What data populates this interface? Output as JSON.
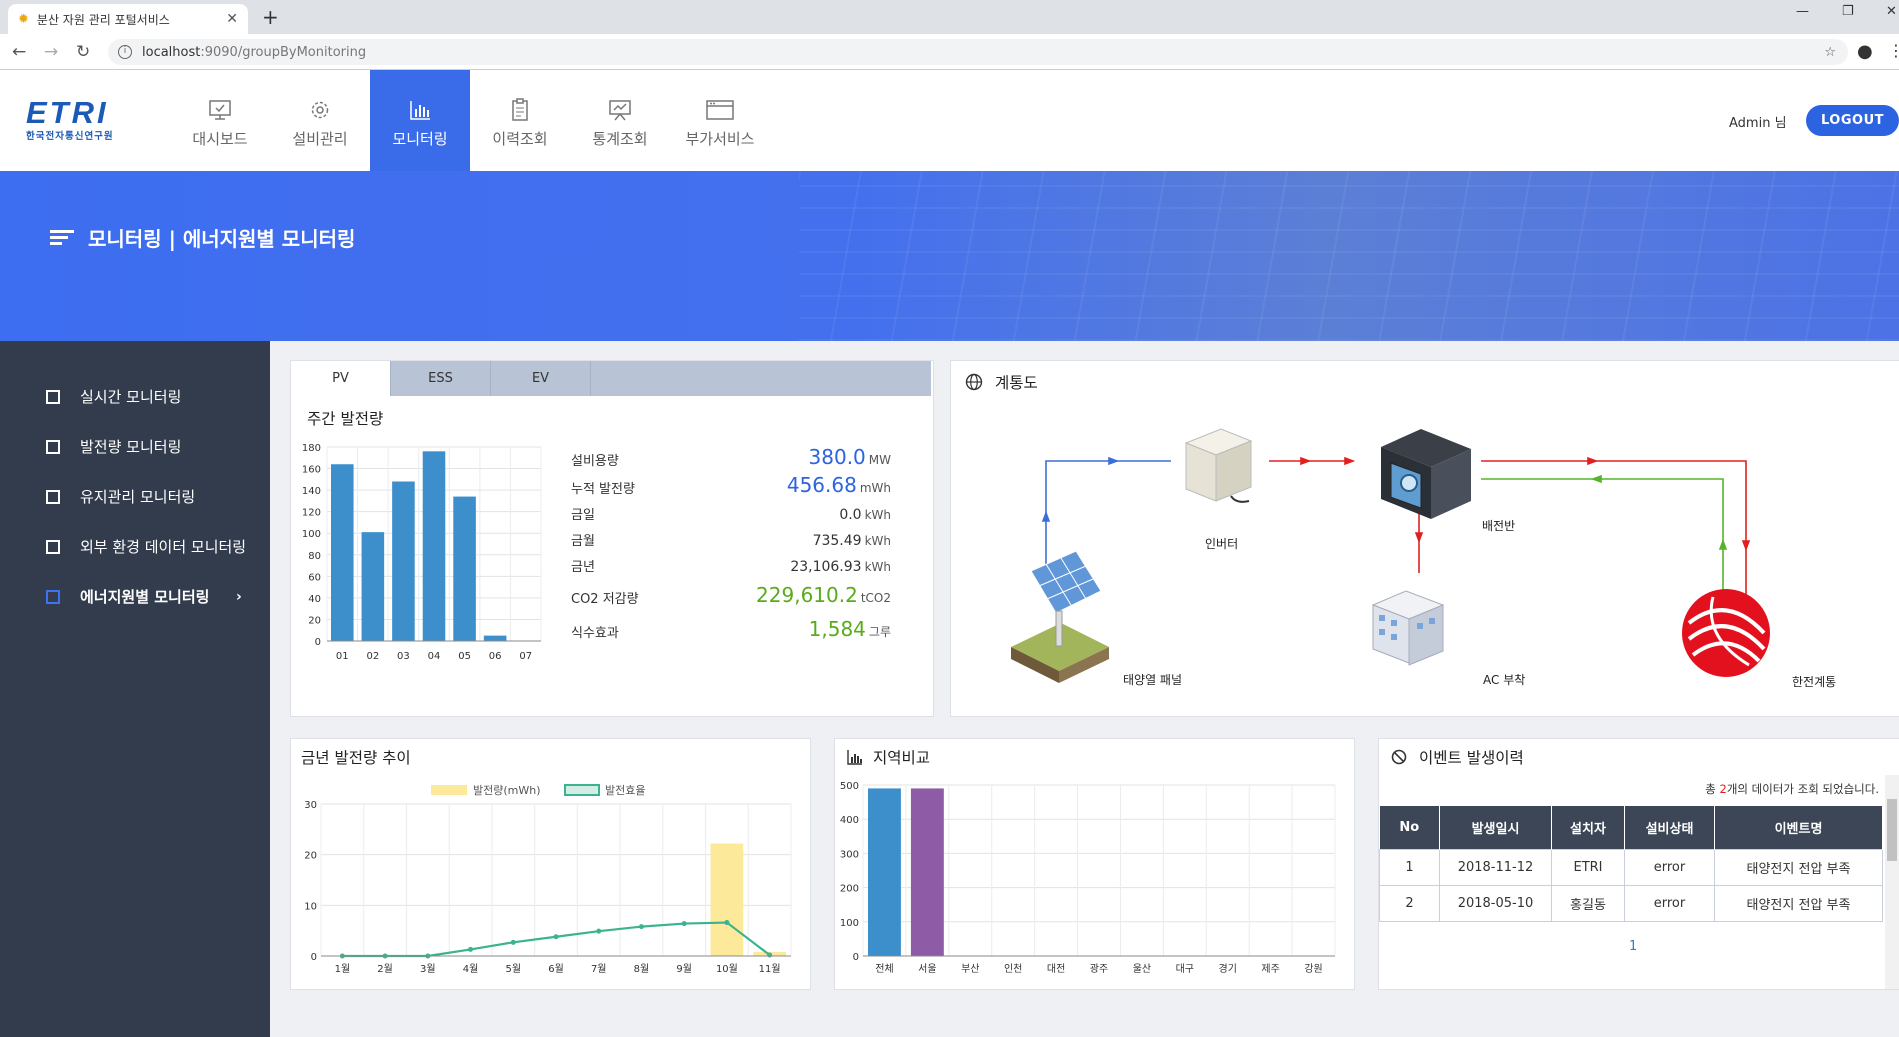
{
  "browser": {
    "tab_title": "분산 자원 관리 포털서비스",
    "url_host": "localhost",
    "url_rest": ":9090/groupByMonitoring"
  },
  "header": {
    "logo_big": "ETRI",
    "logo_small": "한국전자통신연구원",
    "menus": [
      {
        "label": "대시보드",
        "icon": "monitor-icon"
      },
      {
        "label": "설비관리",
        "icon": "gear-icon"
      },
      {
        "label": "모니터링",
        "icon": "bar-chart-icon"
      },
      {
        "label": "이력조회",
        "icon": "clipboard-icon"
      },
      {
        "label": "통계조회",
        "icon": "presentation-icon"
      },
      {
        "label": "부가서비스",
        "icon": "window-icon"
      }
    ],
    "user": "Admin 님",
    "logout": "LOGOUT"
  },
  "banner": {
    "title": "모니터링 | 에너지원별 모니터링"
  },
  "sidebar": {
    "items": [
      {
        "label": "실시간 모니터링"
      },
      {
        "label": "발전량 모니터링"
      },
      {
        "label": "유지관리 모니터링"
      },
      {
        "label": "외부 환경 데이터 모니터링"
      },
      {
        "label": "에너지원별 모니터링"
      }
    ],
    "chevron": "›"
  },
  "weekly": {
    "tabs": [
      "PV",
      "ESS",
      "EV"
    ],
    "title": "주간 발전량",
    "stats": [
      {
        "label": "설비용량",
        "value": "380.0",
        "unit": "MW",
        "style": "blue"
      },
      {
        "label": "누적 발전량",
        "value": "456.68",
        "unit": "mWh",
        "style": "blue"
      },
      {
        "label": "금일",
        "value": "0.0",
        "unit": "kWh",
        "style": ""
      },
      {
        "label": "금월",
        "value": "735.49",
        "unit": "kWh",
        "style": ""
      },
      {
        "label": "금년",
        "value": "23,106.93",
        "unit": "kWh",
        "style": ""
      },
      {
        "label": "CO2 저감량",
        "value": "229,610.2",
        "unit": "tCO2",
        "style": "green"
      },
      {
        "label": "식수효과",
        "value": "1,584",
        "unit": "그루",
        "style": "green"
      }
    ]
  },
  "diagram": {
    "title": "계통도",
    "labels": {
      "inverter": "인버터",
      "panel_board": "배전반",
      "solar": "태양열 패널",
      "ac_load": "AC 부착",
      "kepco": "한전계통"
    }
  },
  "yearly": {
    "title": "금년 발전량 추이"
  },
  "region": {
    "title": "지역비교"
  },
  "events": {
    "title": "이벤트 발생이력",
    "count_prefix": "총 ",
    "count": "2",
    "count_suffix": "개의 데이터가 조회 되었습니다.",
    "headers": [
      "No",
      "발생일시",
      "설치자",
      "설비상태",
      "이벤트명"
    ],
    "rows": [
      [
        "1",
        "2018-11-12",
        "ETRI",
        "error",
        "태양전지 전압 부족"
      ],
      [
        "2",
        "2018-05-10",
        "홍길동",
        "error",
        "태양전지 전압 부족"
      ]
    ],
    "page": "1"
  },
  "chart_data": [
    {
      "type": "bar",
      "title": "주간 발전량",
      "categories": [
        "01",
        "02",
        "03",
        "04",
        "05",
        "06",
        "07"
      ],
      "values": [
        164,
        101,
        148,
        176,
        134,
        5,
        0
      ],
      "ylim": [
        0,
        180
      ],
      "yticks": [
        0,
        20,
        40,
        60,
        80,
        100,
        120,
        140,
        160,
        180
      ],
      "color": "#3d8fcc"
    },
    {
      "type": "bar",
      "title": "금년 발전량 추이",
      "categories": [
        "1월",
        "2월",
        "3월",
        "4월",
        "5월",
        "6월",
        "7월",
        "8월",
        "9월",
        "10월",
        "11월"
      ],
      "series": [
        {
          "name": "발전량(mWh)",
          "type": "bar",
          "values": [
            0,
            0,
            0,
            0,
            0,
            0,
            0,
            0,
            0,
            22.2,
            0.8
          ],
          "color": "#fde99a"
        },
        {
          "name": "발전효율",
          "type": "line",
          "values": [
            0,
            0,
            0,
            1.3,
            2.7,
            3.8,
            4.9,
            5.8,
            6.4,
            6.6,
            0.2
          ],
          "color": "#3bb390"
        }
      ],
      "ylim": [
        0,
        30
      ],
      "yticks": [
        0,
        10,
        20,
        30
      ],
      "legend": "top"
    },
    {
      "type": "bar",
      "title": "지역비교",
      "categories": [
        "전체",
        "서울",
        "부산",
        "인천",
        "대전",
        "광주",
        "울산",
        "대구",
        "경기",
        "제주",
        "강원"
      ],
      "values": [
        490,
        490,
        0,
        0,
        0,
        0,
        0,
        0,
        0,
        0,
        0
      ],
      "colors": [
        "#3d8fcc",
        "#8e5ba6"
      ],
      "ylim": [
        0,
        500
      ],
      "yticks": [
        0,
        100,
        200,
        300,
        400,
        500
      ]
    }
  ]
}
